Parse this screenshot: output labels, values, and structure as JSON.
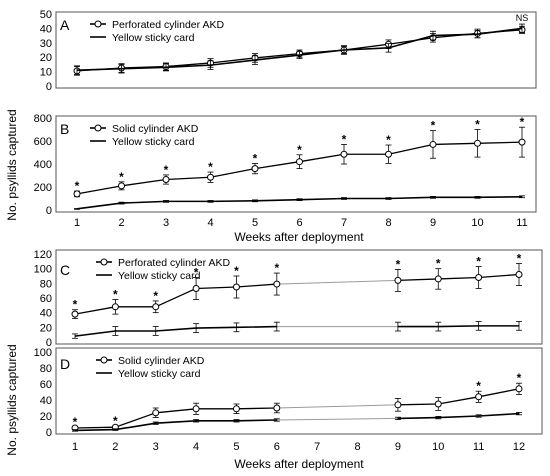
{
  "chart_data": [
    {
      "panel": "A",
      "type": "line",
      "ylim": [
        0,
        50
      ],
      "yticks": [
        0,
        10,
        20,
        30,
        40,
        50
      ],
      "x": [
        1,
        2,
        3,
        4,
        5,
        6,
        7,
        8,
        9,
        10,
        11
      ],
      "series": [
        {
          "name": "Perforated cylinder AKD",
          "marker": "circle",
          "values": [
            10.5,
            12.5,
            13.5,
            16,
            19.5,
            22.5,
            25,
            29,
            33.5,
            36.5,
            39
          ],
          "err": [
            3,
            3,
            2.5,
            3,
            3,
            2.5,
            3,
            3,
            3,
            3,
            2.5
          ]
        },
        {
          "name": "Yellow sticky card",
          "marker": "none",
          "values": [
            11,
            12,
            13,
            14.5,
            18,
            21.5,
            25,
            26.5,
            35,
            36,
            40
          ],
          "err": [
            3,
            3,
            2.5,
            3,
            3,
            2.5,
            2.5,
            3,
            3,
            2.5,
            3
          ]
        }
      ],
      "annotations": [
        {
          "x": 11,
          "text": "NS"
        }
      ]
    },
    {
      "panel": "B",
      "type": "line",
      "ylim": [
        0,
        800
      ],
      "yticks": [
        0,
        200,
        400,
        600,
        800
      ],
      "x": [
        1,
        2,
        3,
        4,
        5,
        6,
        7,
        8,
        9,
        10,
        11
      ],
      "series": [
        {
          "name": "Solid cylinder AKD",
          "marker": "circle",
          "values": [
            140,
            210,
            265,
            285,
            360,
            420,
            485,
            485,
            570,
            580,
            590
          ],
          "err": [
            25,
            35,
            40,
            45,
            45,
            60,
            85,
            80,
            120,
            120,
            130
          ]
        },
        {
          "name": "Yellow sticky card",
          "marker": "none",
          "values": [
            10,
            60,
            75,
            75,
            80,
            90,
            100,
            100,
            110,
            110,
            115
          ],
          "err": [
            4,
            8,
            8,
            8,
            8,
            8,
            8,
            8,
            8,
            8,
            8
          ]
        }
      ],
      "annotations": [
        {
          "x": 1,
          "text": "*"
        },
        {
          "x": 2,
          "text": "*"
        },
        {
          "x": 3,
          "text": "*"
        },
        {
          "x": 4,
          "text": "*"
        },
        {
          "x": 5,
          "text": "*"
        },
        {
          "x": 6,
          "text": "*"
        },
        {
          "x": 7,
          "text": "*"
        },
        {
          "x": 8,
          "text": "*"
        },
        {
          "x": 9,
          "text": "*"
        },
        {
          "x": 10,
          "text": "*"
        },
        {
          "x": 11,
          "text": "*"
        }
      ],
      "xlabel": "Weeks after deployment",
      "xtick_labels": [
        "1",
        "2",
        "3",
        "4",
        "5",
        "6",
        "7",
        "8",
        "9",
        "10",
        "11"
      ]
    },
    {
      "panel": "C",
      "type": "line",
      "ylim": [
        0,
        120
      ],
      "yticks": [
        0,
        20,
        40,
        60,
        80,
        100,
        120
      ],
      "x": [
        1,
        2,
        3,
        4,
        5,
        6,
        9,
        10,
        11,
        12
      ],
      "series": [
        {
          "name": "Perforated cylinder AKD",
          "marker": "circle",
          "values": [
            38,
            48,
            48,
            73,
            75,
            79,
            84,
            86,
            88,
            92
          ],
          "err": [
            6,
            10,
            8,
            15,
            15,
            15,
            15,
            14,
            15,
            15
          ]
        },
        {
          "name": "Yellow sticky card",
          "marker": "none",
          "values": [
            8,
            15,
            15,
            19,
            20,
            21,
            21,
            21,
            22,
            22
          ],
          "err": [
            3,
            6,
            6,
            6,
            6,
            6,
            6,
            6,
            6,
            6
          ]
        }
      ],
      "annotations": [
        {
          "x": 1,
          "text": "*"
        },
        {
          "x": 2,
          "text": "*"
        },
        {
          "x": 3,
          "text": "*"
        },
        {
          "x": 4,
          "text": "*"
        },
        {
          "x": 5,
          "text": "*"
        },
        {
          "x": 6,
          "text": "*"
        },
        {
          "x": 9,
          "text": "*"
        },
        {
          "x": 10,
          "text": "*"
        },
        {
          "x": 11,
          "text": "*"
        },
        {
          "x": 12,
          "text": "*"
        }
      ]
    },
    {
      "panel": "D",
      "type": "line",
      "ylim": [
        0,
        100
      ],
      "yticks": [
        0,
        20,
        40,
        60,
        80,
        100
      ],
      "x": [
        1,
        2,
        3,
        4,
        5,
        6,
        9,
        10,
        11,
        12
      ],
      "series": [
        {
          "name": "Solid cylinder AKD",
          "marker": "circle",
          "values": [
            5,
            6,
            24,
            29,
            29,
            30,
            34,
            35,
            44,
            54
          ],
          "err": [
            1.5,
            1.5,
            6,
            7,
            6,
            6,
            8,
            8,
            7,
            7
          ]
        },
        {
          "name": "Yellow sticky card",
          "marker": "none",
          "values": [
            2,
            3,
            11,
            14,
            14,
            15,
            17,
            18,
            20,
            23
          ],
          "err": [
            1,
            1,
            1.5,
            1.5,
            1.5,
            1.5,
            1.5,
            1.5,
            1.5,
            1.5
          ]
        }
      ],
      "annotations": [
        {
          "x": 1,
          "text": "*"
        },
        {
          "x": 2,
          "text": "*"
        },
        {
          "x": 11,
          "text": "*"
        },
        {
          "x": 12,
          "text": "*"
        }
      ],
      "xlabel": "Weeks after deployment",
      "xtick_labels": [
        "1",
        "2",
        "3",
        "4",
        "5",
        "6",
        "7",
        "8",
        "9",
        "10",
        "11",
        "12"
      ]
    }
  ],
  "ylabel": "No. psyllids captured",
  "colors": {
    "line": "#000000",
    "connector": "#9a9a9a",
    "frame": "#555555"
  }
}
